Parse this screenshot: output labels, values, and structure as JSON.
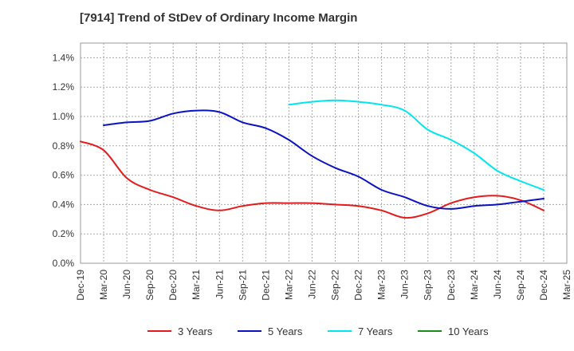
{
  "chart_data": {
    "type": "line",
    "title": "[7914]  Trend of StDev of Ordinary Income Margin",
    "xlabel": "",
    "ylabel": "",
    "y_ticks": [
      "0.0%",
      "0.2%",
      "0.4%",
      "0.6%",
      "0.8%",
      "1.0%",
      "1.2%",
      "1.4%"
    ],
    "ylim": [
      0,
      1.5
    ],
    "x_ticks": [
      "Dec-19",
      "Mar-20",
      "Jun-20",
      "Sep-20",
      "Dec-20",
      "Mar-21",
      "Jun-21",
      "Sep-21",
      "Dec-21",
      "Mar-22",
      "Jun-22",
      "Sep-22",
      "Dec-22",
      "Mar-23",
      "Jun-23",
      "Sep-23",
      "Dec-23",
      "Mar-24",
      "Jun-24",
      "Sep-24",
      "Dec-24",
      "Mar-25"
    ],
    "grid": true,
    "legend_position": "bottom",
    "series": [
      {
        "name": "3 Years",
        "color": "#e41a1c",
        "x": [
          "Dec-19",
          "Mar-20",
          "Jun-20",
          "Sep-20",
          "Dec-20",
          "Mar-21",
          "Jun-21",
          "Sep-21",
          "Dec-21",
          "Mar-22",
          "Jun-22",
          "Sep-22",
          "Dec-22",
          "Mar-23",
          "Jun-23",
          "Sep-23",
          "Dec-23",
          "Mar-24",
          "Jun-24",
          "Sep-24",
          "Dec-24"
        ],
        "values": [
          0.83,
          0.77,
          0.58,
          0.5,
          0.45,
          0.39,
          0.36,
          0.39,
          0.41,
          0.41,
          0.41,
          0.4,
          0.39,
          0.36,
          0.31,
          0.34,
          0.41,
          0.45,
          0.46,
          0.43,
          0.36
        ]
      },
      {
        "name": "5 Years",
        "color": "#0a13c2",
        "x": [
          "Mar-20",
          "Jun-20",
          "Sep-20",
          "Dec-20",
          "Mar-21",
          "Jun-21",
          "Sep-21",
          "Dec-21",
          "Mar-22",
          "Jun-22",
          "Sep-22",
          "Dec-22",
          "Mar-23",
          "Jun-23",
          "Sep-23",
          "Dec-23",
          "Mar-24",
          "Jun-24",
          "Sep-24",
          "Dec-24"
        ],
        "values": [
          0.94,
          0.96,
          0.97,
          1.02,
          1.04,
          1.03,
          0.96,
          0.92,
          0.84,
          0.73,
          0.65,
          0.59,
          0.5,
          0.45,
          0.39,
          0.37,
          0.39,
          0.4,
          0.42,
          0.44
        ]
      },
      {
        "name": "7 Years",
        "color": "#00e5ee",
        "x": [
          "Mar-22",
          "Jun-22",
          "Sep-22",
          "Dec-22",
          "Mar-23",
          "Jun-23",
          "Sep-23",
          "Dec-23",
          "Mar-24",
          "Jun-24",
          "Sep-24",
          "Dec-24"
        ],
        "values": [
          1.08,
          1.1,
          1.11,
          1.1,
          1.08,
          1.04,
          0.91,
          0.84,
          0.75,
          0.63,
          0.56,
          0.5
        ]
      },
      {
        "name": "10 Years",
        "color": "#1a8c1a",
        "x": [],
        "values": []
      }
    ]
  }
}
